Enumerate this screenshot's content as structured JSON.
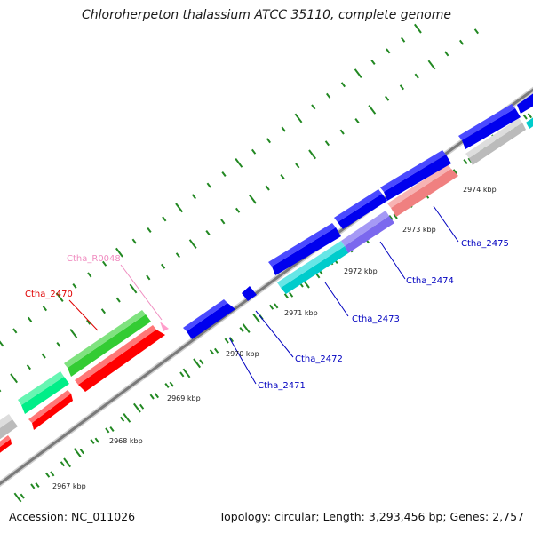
{
  "title": "Chloroherpeton thalassium ATCC 35110, complete genome",
  "footer": {
    "accession": "Accession: NC_011026",
    "topology": "Topology: circular; Length: 3,293,456 bp; Genes: 2,757"
  },
  "scale_labels": [
    "2967 kbp",
    "2968 kbp",
    "2969 kbp",
    "2970 kbp",
    "2971 kbp",
    "2972 kbp",
    "2973 kbp",
    "2974 kbp"
  ],
  "gene_labels": [
    {
      "id": "Ctha_R0048",
      "text": "Ctha_R0048",
      "color": "#f08cc0"
    },
    {
      "id": "Ctha_2470",
      "text": "Ctha_2470",
      "color": "#e00000"
    },
    {
      "id": "Ctha_2471",
      "text": "Ctha_2471",
      "color": "#0000c0"
    },
    {
      "id": "Ctha_2472",
      "text": "Ctha_2472",
      "color": "#0000c0"
    },
    {
      "id": "Ctha_2473",
      "text": "Ctha_2473",
      "color": "#0000c0"
    },
    {
      "id": "Ctha_2474",
      "text": "Ctha_2474",
      "color": "#0000c0"
    },
    {
      "id": "Ctha_2475",
      "text": "Ctha_2475",
      "color": "#0000c0"
    }
  ],
  "colors": {
    "backbone": "#808080",
    "tick": "#228822",
    "blue_gene": "#0000ee",
    "red_gene": "#ff0000",
    "green_gene": "#33cc33",
    "spring_green_gene": "#00ee88",
    "cyan_gene": "#00cccc",
    "slate_gene": "#7b68ee",
    "salmon_gene": "#f08080",
    "grey_gene": "#bbbbbb",
    "pink_gene": "#ff9ecb"
  }
}
